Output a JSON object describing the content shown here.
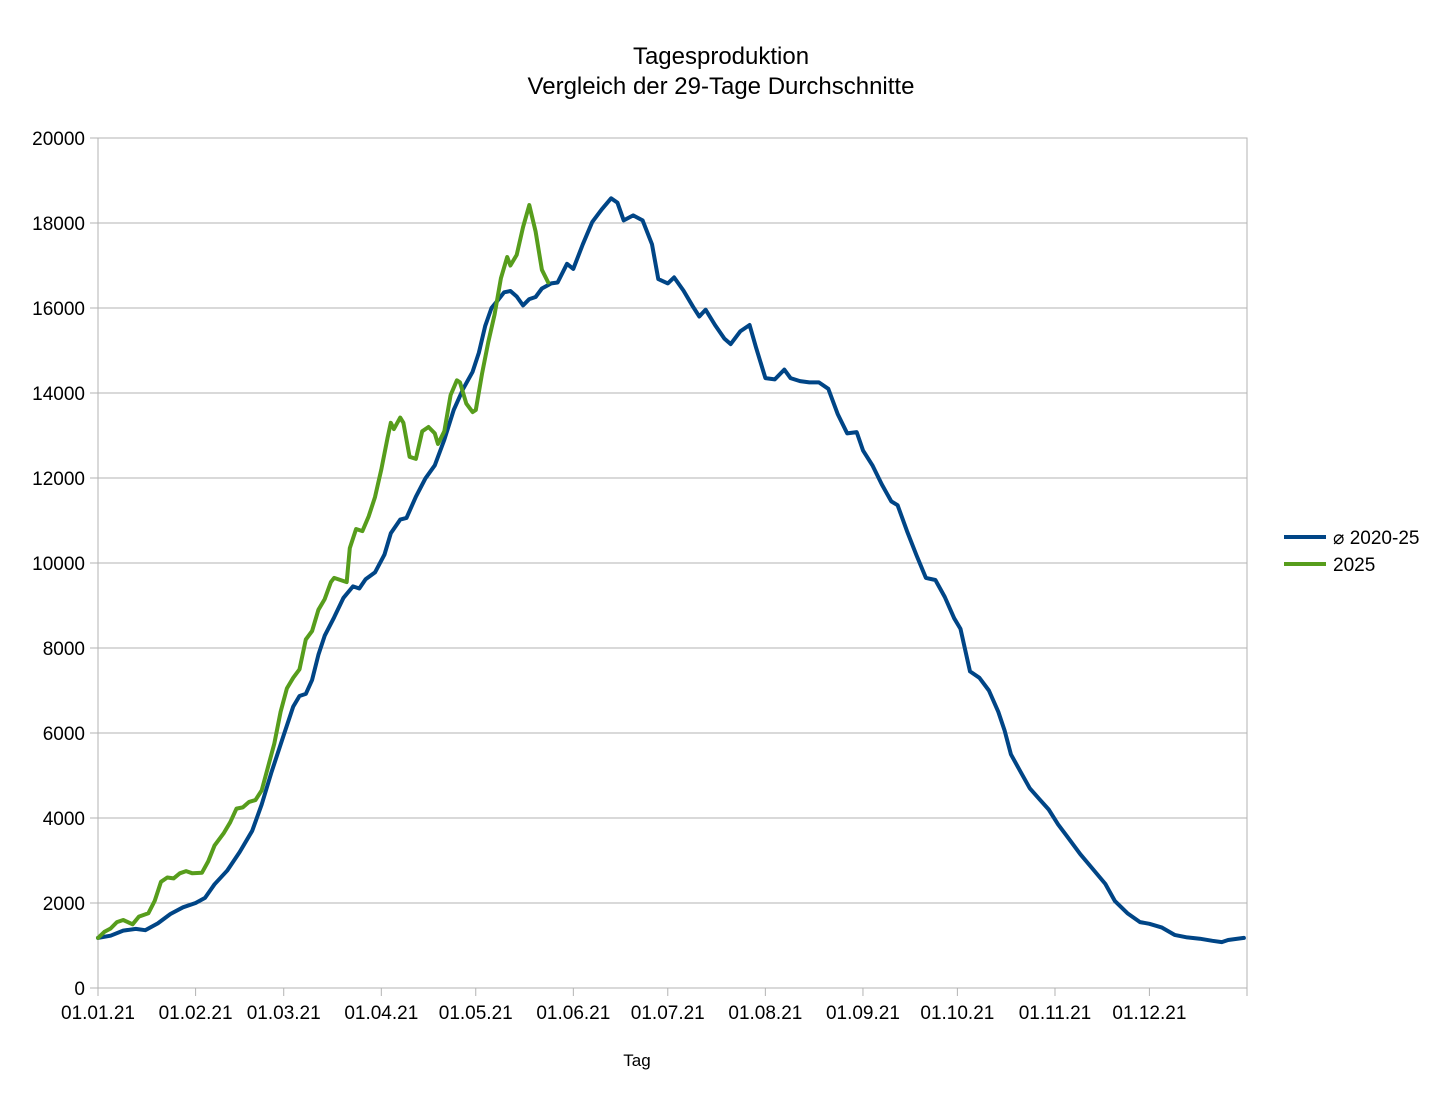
{
  "chart_data": {
    "type": "line",
    "title": "Tagesproduktion",
    "subtitle": "Vergleich der 29-Tage Durchschnitte",
    "xlabel": "Tag",
    "ylabel": "",
    "ylim": [
      0,
      20000
    ],
    "xlim": [
      "2021-01-01",
      "2021-12-31"
    ],
    "y_ticks": [
      "0",
      "2000",
      "4000",
      "6000",
      "8000",
      "10000",
      "12000",
      "14000",
      "16000",
      "18000",
      "20000"
    ],
    "x_ticks": [
      "01.01.21",
      "01.02.21",
      "01.03.21",
      "01.04.21",
      "01.05.21",
      "01.06.21",
      "01.07.21",
      "01.08.21",
      "01.09.21",
      "01.10.21",
      "01.11.21",
      "01.12.21"
    ],
    "x_tick_dates": [
      "2021-01-01",
      "2021-02-01",
      "2021-03-01",
      "2021-04-01",
      "2021-05-01",
      "2021-06-01",
      "2021-07-01",
      "2021-08-01",
      "2021-09-01",
      "2021-10-01",
      "2021-11-01",
      "2021-12-01"
    ],
    "grid": "horizontal",
    "legend_position": "right",
    "series": [
      {
        "name": "⌀ 2020-25",
        "color": "#004586",
        "points": [
          [
            "2021-01-01",
            1180
          ],
          [
            "2021-01-05",
            1230
          ],
          [
            "2021-01-09",
            1350
          ],
          [
            "2021-01-13",
            1390
          ],
          [
            "2021-01-16",
            1360
          ],
          [
            "2021-01-20",
            1520
          ],
          [
            "2021-01-24",
            1740
          ],
          [
            "2021-01-28",
            1900
          ],
          [
            "2021-02-01",
            2000
          ],
          [
            "2021-02-04",
            2120
          ],
          [
            "2021-02-07",
            2440
          ],
          [
            "2021-02-11",
            2760
          ],
          [
            "2021-02-15",
            3200
          ],
          [
            "2021-02-19",
            3700
          ],
          [
            "2021-02-22",
            4320
          ],
          [
            "2021-02-25",
            5050
          ],
          [
            "2021-03-01",
            5950
          ],
          [
            "2021-03-04",
            6620
          ],
          [
            "2021-03-06",
            6870
          ],
          [
            "2021-03-08",
            6920
          ],
          [
            "2021-03-10",
            7250
          ],
          [
            "2021-03-12",
            7840
          ],
          [
            "2021-03-14",
            8290
          ],
          [
            "2021-03-17",
            8720
          ],
          [
            "2021-03-20",
            9180
          ],
          [
            "2021-03-23",
            9450
          ],
          [
            "2021-03-25",
            9400
          ],
          [
            "2021-03-27",
            9620
          ],
          [
            "2021-03-30",
            9780
          ],
          [
            "2021-04-02",
            10200
          ],
          [
            "2021-04-04",
            10700
          ],
          [
            "2021-04-07",
            11020
          ],
          [
            "2021-04-09",
            11060
          ],
          [
            "2021-04-12",
            11560
          ],
          [
            "2021-04-15",
            11990
          ],
          [
            "2021-04-18",
            12300
          ],
          [
            "2021-04-21",
            12900
          ],
          [
            "2021-04-24",
            13600
          ],
          [
            "2021-04-27",
            14100
          ],
          [
            "2021-04-30",
            14500
          ],
          [
            "2021-05-02",
            14950
          ],
          [
            "2021-05-04",
            15580
          ],
          [
            "2021-05-06",
            16000
          ],
          [
            "2021-05-08",
            16180
          ],
          [
            "2021-05-10",
            16370
          ],
          [
            "2021-05-12",
            16400
          ],
          [
            "2021-05-14",
            16270
          ],
          [
            "2021-05-16",
            16060
          ],
          [
            "2021-05-18",
            16210
          ],
          [
            "2021-05-20",
            16260
          ],
          [
            "2021-05-22",
            16460
          ],
          [
            "2021-05-25",
            16580
          ],
          [
            "2021-05-27",
            16600
          ],
          [
            "2021-05-30",
            17040
          ],
          [
            "2021-06-01",
            16920
          ],
          [
            "2021-06-04",
            17500
          ],
          [
            "2021-06-07",
            18020
          ],
          [
            "2021-06-10",
            18320
          ],
          [
            "2021-06-13",
            18580
          ],
          [
            "2021-06-15",
            18480
          ],
          [
            "2021-06-17",
            18060
          ],
          [
            "2021-06-20",
            18180
          ],
          [
            "2021-06-23",
            18060
          ],
          [
            "2021-06-26",
            17500
          ],
          [
            "2021-06-28",
            16680
          ],
          [
            "2021-07-01",
            16580
          ],
          [
            "2021-07-03",
            16720
          ],
          [
            "2021-07-06",
            16410
          ],
          [
            "2021-07-09",
            16030
          ],
          [
            "2021-07-11",
            15800
          ],
          [
            "2021-07-13",
            15960
          ],
          [
            "2021-07-16",
            15600
          ],
          [
            "2021-07-19",
            15280
          ],
          [
            "2021-07-21",
            15150
          ],
          [
            "2021-07-24",
            15450
          ],
          [
            "2021-07-27",
            15600
          ],
          [
            "2021-07-29",
            15080
          ],
          [
            "2021-08-01",
            14350
          ],
          [
            "2021-08-04",
            14320
          ],
          [
            "2021-08-07",
            14550
          ],
          [
            "2021-08-09",
            14350
          ],
          [
            "2021-08-12",
            14280
          ],
          [
            "2021-08-15",
            14250
          ],
          [
            "2021-08-18",
            14250
          ],
          [
            "2021-08-21",
            14100
          ],
          [
            "2021-08-24",
            13500
          ],
          [
            "2021-08-27",
            13050
          ],
          [
            "2021-08-30",
            13080
          ],
          [
            "2021-09-01",
            12650
          ],
          [
            "2021-09-04",
            12300
          ],
          [
            "2021-09-07",
            11850
          ],
          [
            "2021-09-10",
            11450
          ],
          [
            "2021-09-12",
            11360
          ],
          [
            "2021-09-15",
            10750
          ],
          [
            "2021-09-18",
            10180
          ],
          [
            "2021-09-21",
            9650
          ],
          [
            "2021-09-24",
            9600
          ],
          [
            "2021-09-27",
            9200
          ],
          [
            "2021-09-30",
            8700
          ],
          [
            "2021-10-02",
            8450
          ],
          [
            "2021-10-05",
            7450
          ],
          [
            "2021-10-08",
            7300
          ],
          [
            "2021-10-11",
            7000
          ],
          [
            "2021-10-14",
            6500
          ],
          [
            "2021-10-16",
            6060
          ],
          [
            "2021-10-18",
            5500
          ],
          [
            "2021-10-21",
            5100
          ],
          [
            "2021-10-24",
            4700
          ],
          [
            "2021-10-27",
            4450
          ],
          [
            "2021-10-30",
            4200
          ],
          [
            "2021-11-02",
            3850
          ],
          [
            "2021-11-05",
            3550
          ],
          [
            "2021-11-09",
            3150
          ],
          [
            "2021-11-13",
            2800
          ],
          [
            "2021-11-17",
            2450
          ],
          [
            "2021-11-20",
            2050
          ],
          [
            "2021-11-24",
            1760
          ],
          [
            "2021-11-28",
            1550
          ],
          [
            "2021-12-01",
            1510
          ],
          [
            "2021-12-05",
            1420
          ],
          [
            "2021-12-09",
            1250
          ],
          [
            "2021-12-13",
            1190
          ],
          [
            "2021-12-17",
            1160
          ],
          [
            "2021-12-21",
            1110
          ],
          [
            "2021-12-24",
            1080
          ],
          [
            "2021-12-26",
            1130
          ],
          [
            "2021-12-31",
            1180
          ]
        ]
      },
      {
        "name": "2025",
        "color": "#579d1c",
        "points": [
          [
            "2021-01-01",
            1180
          ],
          [
            "2021-01-03",
            1320
          ],
          [
            "2021-01-05",
            1400
          ],
          [
            "2021-01-07",
            1550
          ],
          [
            "2021-01-09",
            1600
          ],
          [
            "2021-01-12",
            1500
          ],
          [
            "2021-01-14",
            1680
          ],
          [
            "2021-01-17",
            1760
          ],
          [
            "2021-01-19",
            2050
          ],
          [
            "2021-01-21",
            2500
          ],
          [
            "2021-01-23",
            2600
          ],
          [
            "2021-01-25",
            2580
          ],
          [
            "2021-01-27",
            2700
          ],
          [
            "2021-01-29",
            2750
          ],
          [
            "2021-01-31",
            2700
          ],
          [
            "2021-02-03",
            2710
          ],
          [
            "2021-02-05",
            2980
          ],
          [
            "2021-02-07",
            3350
          ],
          [
            "2021-02-10",
            3650
          ],
          [
            "2021-02-12",
            3900
          ],
          [
            "2021-02-14",
            4220
          ],
          [
            "2021-02-16",
            4250
          ],
          [
            "2021-02-18",
            4380
          ],
          [
            "2021-02-20",
            4420
          ],
          [
            "2021-02-22",
            4650
          ],
          [
            "2021-02-24",
            5200
          ],
          [
            "2021-02-26",
            5750
          ],
          [
            "2021-02-28",
            6500
          ],
          [
            "2021-03-02",
            7050
          ],
          [
            "2021-03-04",
            7300
          ],
          [
            "2021-03-06",
            7500
          ],
          [
            "2021-03-08",
            8200
          ],
          [
            "2021-03-10",
            8400
          ],
          [
            "2021-03-12",
            8900
          ],
          [
            "2021-03-14",
            9150
          ],
          [
            "2021-03-16",
            9550
          ],
          [
            "2021-03-17",
            9650
          ],
          [
            "2021-03-19",
            9600
          ],
          [
            "2021-03-21",
            9550
          ],
          [
            "2021-03-22",
            10350
          ],
          [
            "2021-03-24",
            10800
          ],
          [
            "2021-03-26",
            10750
          ],
          [
            "2021-03-28",
            11100
          ],
          [
            "2021-03-30",
            11550
          ],
          [
            "2021-04-01",
            12200
          ],
          [
            "2021-04-03",
            12950
          ],
          [
            "2021-04-04",
            13300
          ],
          [
            "2021-04-05",
            13150
          ],
          [
            "2021-04-07",
            13420
          ],
          [
            "2021-04-08",
            13300
          ],
          [
            "2021-04-10",
            12500
          ],
          [
            "2021-04-12",
            12450
          ],
          [
            "2021-04-14",
            13100
          ],
          [
            "2021-04-16",
            13200
          ],
          [
            "2021-04-18",
            13050
          ],
          [
            "2021-04-19",
            12800
          ],
          [
            "2021-04-21",
            13100
          ],
          [
            "2021-04-23",
            13950
          ],
          [
            "2021-04-25",
            14300
          ],
          [
            "2021-04-26",
            14250
          ],
          [
            "2021-04-28",
            13750
          ],
          [
            "2021-04-30",
            13550
          ],
          [
            "2021-05-01",
            13600
          ],
          [
            "2021-05-03",
            14450
          ],
          [
            "2021-05-05",
            15200
          ],
          [
            "2021-05-07",
            15850
          ],
          [
            "2021-05-09",
            16700
          ],
          [
            "2021-05-11",
            17200
          ],
          [
            "2021-05-12",
            17000
          ],
          [
            "2021-05-14",
            17250
          ],
          [
            "2021-05-16",
            17900
          ],
          [
            "2021-05-18",
            18420
          ],
          [
            "2021-05-20",
            17800
          ],
          [
            "2021-05-22",
            16900
          ],
          [
            "2021-05-24",
            16600
          ]
        ]
      }
    ]
  }
}
